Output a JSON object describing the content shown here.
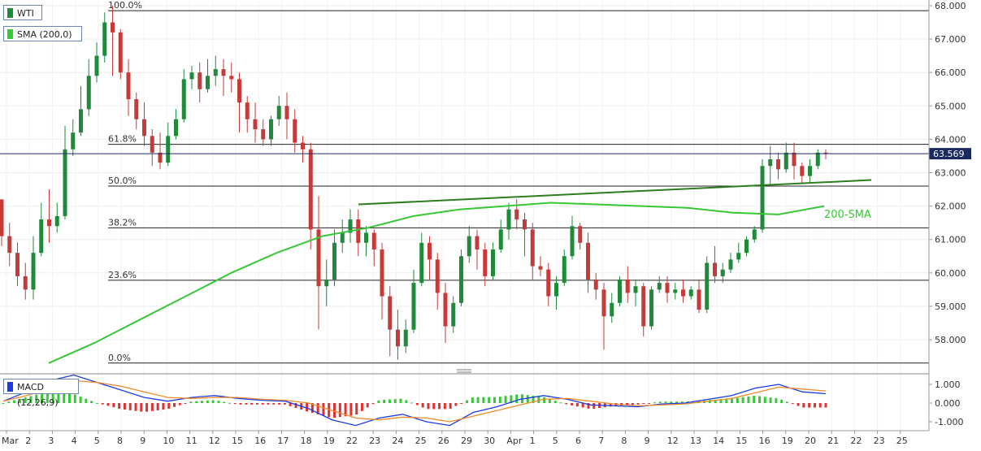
{
  "legend": {
    "main": "WTI",
    "sma": "SMA (200,0)",
    "macd": "MACD (12,26,9)"
  },
  "colors": {
    "up": "#1f8a3a",
    "down": "#c73a3a",
    "sma": "#37c837",
    "trend": "#2e7d1e",
    "macd": "#1a3ce8",
    "signal": "#f08a2a",
    "fib": "#222222"
  },
  "chart_data": [
    {
      "type": "candlestick",
      "title": "WTI",
      "x_labels": [
        "Mar",
        "2",
        "3",
        "4",
        "5",
        "8",
        "9",
        "10",
        "11",
        "12",
        "15",
        "16",
        "17",
        "18",
        "19",
        "22",
        "23",
        "24",
        "25",
        "26",
        "29",
        "30",
        "Apr",
        "1",
        "5",
        "6",
        "7",
        "8",
        "9",
        "12",
        "13",
        "14",
        "15",
        "16",
        "19",
        "20",
        "21",
        "22",
        "23",
        "25"
      ],
      "ylim": [
        57.5,
        68.0
      ],
      "y_ticks": [
        "68.000",
        "67.000",
        "66.000",
        "65.000",
        "64.000",
        "63.000",
        "62.000",
        "61.000",
        "60.000",
        "59.000",
        "58.000"
      ],
      "last_price": "63.569",
      "candles": [
        [
          62.2,
          61.9,
          61.1,
          60.8
        ],
        [
          61.1,
          61.5,
          60.6,
          60.2
        ],
        [
          60.6,
          60.9,
          59.9,
          59.6
        ],
        [
          59.9,
          60.3,
          59.5,
          59.2
        ],
        [
          59.5,
          61.1,
          60.6,
          59.2
        ],
        [
          60.6,
          62.1,
          61.6,
          60.5
        ],
        [
          61.6,
          62.5,
          61.4,
          60.9
        ],
        [
          61.4,
          62.1,
          61.7,
          61.2
        ],
        [
          61.7,
          64.4,
          63.7,
          61.6
        ],
        [
          63.7,
          64.6,
          64.2,
          63.5
        ],
        [
          64.2,
          65.6,
          64.9,
          64.1
        ],
        [
          64.9,
          66.4,
          65.9,
          64.7
        ],
        [
          65.9,
          66.9,
          66.5,
          65.7
        ],
        [
          66.5,
          67.8,
          67.5,
          66.3
        ],
        [
          67.5,
          68.0,
          67.2,
          65.9
        ],
        [
          67.2,
          67.3,
          66.0,
          65.8
        ],
        [
          66.0,
          66.4,
          65.2,
          64.7
        ],
        [
          65.2,
          65.4,
          64.6,
          64.3
        ],
        [
          64.6,
          65.1,
          64.1,
          63.8
        ],
        [
          64.1,
          64.3,
          63.6,
          63.2
        ],
        [
          63.6,
          64.2,
          63.3,
          63.1
        ],
        [
          63.3,
          64.5,
          64.1,
          63.2
        ],
        [
          64.1,
          64.9,
          64.6,
          64.0
        ],
        [
          64.6,
          66.1,
          65.8,
          64.5
        ],
        [
          65.8,
          66.2,
          66.0,
          65.5
        ],
        [
          66.0,
          66.3,
          65.5,
          65.1
        ],
        [
          65.5,
          66.4,
          65.9,
          65.4
        ],
        [
          65.9,
          66.5,
          66.1,
          65.6
        ],
        [
          66.1,
          66.4,
          65.9,
          65.3
        ],
        [
          65.9,
          66.3,
          65.8,
          65.4
        ],
        [
          65.8,
          66.0,
          65.1,
          64.2
        ],
        [
          65.1,
          65.3,
          64.6,
          64.2
        ],
        [
          64.6,
          65.1,
          64.3,
          63.9
        ],
        [
          64.3,
          64.6,
          64.0,
          63.8
        ],
        [
          64.0,
          64.7,
          64.6,
          63.8
        ],
        [
          64.6,
          65.3,
          65.0,
          64.4
        ],
        [
          65.0,
          65.4,
          64.6,
          64.0
        ],
        [
          64.6,
          64.9,
          63.9,
          63.6
        ],
        [
          63.9,
          64.1,
          63.7,
          63.3
        ],
        [
          63.7,
          63.9,
          61.3,
          60.7
        ],
        [
          61.3,
          62.3,
          59.6,
          58.3
        ],
        [
          59.6,
          60.4,
          59.8,
          59.0
        ],
        [
          59.8,
          61.3,
          60.9,
          59.6
        ],
        [
          60.9,
          61.6,
          61.2,
          60.6
        ],
        [
          61.2,
          61.9,
          61.6,
          60.9
        ],
        [
          61.6,
          61.9,
          60.9,
          60.5
        ],
        [
          60.9,
          61.4,
          61.2,
          60.5
        ],
        [
          61.2,
          61.3,
          60.7,
          60.2
        ],
        [
          60.7,
          60.9,
          59.3,
          58.6
        ],
        [
          59.3,
          59.6,
          58.3,
          57.5
        ],
        [
          58.3,
          58.9,
          57.8,
          57.4
        ],
        [
          57.8,
          58.6,
          58.3,
          57.6
        ],
        [
          58.3,
          60.1,
          59.7,
          58.2
        ],
        [
          59.7,
          61.2,
          60.9,
          59.6
        ],
        [
          60.9,
          61.1,
          60.4,
          59.8
        ],
        [
          60.4,
          60.6,
          59.4,
          58.9
        ],
        [
          59.4,
          59.7,
          58.4,
          57.9
        ],
        [
          58.4,
          59.3,
          59.1,
          58.2
        ],
        [
          59.1,
          60.7,
          60.5,
          59.0
        ],
        [
          60.5,
          61.4,
          61.1,
          60.3
        ],
        [
          61.1,
          61.3,
          60.7,
          60.1
        ],
        [
          60.7,
          60.9,
          59.9,
          59.6
        ],
        [
          59.9,
          60.9,
          60.7,
          59.8
        ],
        [
          60.7,
          61.6,
          61.3,
          60.6
        ],
        [
          61.3,
          62.1,
          61.9,
          61.0
        ],
        [
          61.9,
          62.2,
          61.6,
          61.3
        ],
        [
          61.6,
          61.8,
          61.3,
          60.5
        ],
        [
          61.3,
          61.5,
          60.2,
          59.8
        ],
        [
          60.2,
          60.5,
          60.1,
          59.9
        ],
        [
          60.1,
          60.3,
          59.3,
          59.0
        ],
        [
          59.3,
          59.9,
          59.7,
          58.9
        ],
        [
          59.7,
          60.7,
          60.5,
          59.6
        ],
        [
          60.5,
          61.7,
          61.4,
          60.4
        ],
        [
          61.4,
          61.5,
          60.9,
          60.7
        ],
        [
          60.9,
          61.2,
          59.8,
          59.4
        ],
        [
          59.8,
          60.0,
          59.5,
          59.2
        ],
        [
          59.5,
          59.7,
          58.7,
          57.7
        ],
        [
          58.7,
          59.4,
          59.1,
          58.5
        ],
        [
          59.1,
          59.9,
          59.8,
          59.0
        ],
        [
          59.8,
          60.2,
          59.4,
          59.1
        ],
        [
          59.4,
          59.8,
          59.6,
          59.0
        ],
        [
          59.6,
          59.7,
          58.4,
          58.1
        ],
        [
          58.4,
          59.6,
          59.5,
          58.3
        ],
        [
          59.5,
          59.9,
          59.7,
          59.4
        ],
        [
          59.7,
          59.9,
          59.4,
          59.1
        ],
        [
          59.4,
          59.7,
          59.5,
          59.2
        ],
        [
          59.5,
          59.8,
          59.3,
          59.1
        ],
        [
          59.3,
          59.6,
          59.5,
          59.2
        ],
        [
          59.5,
          59.8,
          58.9,
          58.8
        ],
        [
          58.9,
          60.5,
          60.3,
          58.8
        ],
        [
          60.3,
          60.8,
          59.9,
          59.7
        ],
        [
          59.9,
          60.3,
          60.1,
          59.7
        ],
        [
          60.1,
          60.6,
          60.4,
          60.0
        ],
        [
          60.4,
          60.9,
          60.6,
          60.3
        ],
        [
          60.6,
          61.1,
          61.0,
          60.5
        ],
        [
          61.0,
          61.4,
          61.3,
          60.9
        ],
        [
          61.3,
          63.4,
          63.2,
          61.2
        ],
        [
          63.2,
          63.8,
          63.4,
          62.6
        ],
        [
          63.4,
          63.6,
          63.1,
          62.8
        ],
        [
          63.1,
          63.9,
          63.6,
          63.0
        ],
        [
          63.6,
          63.9,
          63.2,
          62.8
        ],
        [
          63.2,
          63.3,
          62.9,
          62.7
        ],
        [
          62.9,
          63.4,
          63.2,
          62.7
        ],
        [
          63.2,
          63.7,
          63.6,
          63.1
        ],
        [
          63.6,
          63.7,
          63.57,
          63.4
        ]
      ],
      "sma_values": [
        57.3,
        57.9,
        58.6,
        59.3,
        60.0,
        60.6,
        61.1,
        61.35,
        61.7,
        61.9,
        62.0,
        62.1,
        62.05,
        62.0,
        61.95,
        61.8,
        61.75,
        62.0
      ],
      "fib_levels": [
        {
          "label": "100.0%",
          "value": 67.85
        },
        {
          "label": "61.8%",
          "value": 63.85
        },
        {
          "label": "50.0%",
          "value": 62.6
        },
        {
          "label": "38.2%",
          "value": 61.35
        },
        {
          "label": "23.6%",
          "value": 59.78
        },
        {
          "label": "0.0%",
          "value": 57.3
        }
      ],
      "trendline": {
        "from": 62.05,
        "to": 62.78
      },
      "annotations": [
        "200-SMA"
      ]
    },
    {
      "type": "macd",
      "title": "MACD (12,26,9)",
      "ylim": [
        -1.4,
        1.55
      ],
      "y_ticks": [
        "1.000",
        "0.000",
        "-1.000"
      ],
      "macd": [
        0.1,
        0.6,
        1.2,
        1.5,
        1.1,
        0.7,
        0.3,
        0.1,
        0.3,
        0.4,
        0.25,
        0.15,
        0.1,
        -0.3,
        -0.9,
        -1.2,
        -0.8,
        -0.6,
        -1.0,
        -1.2,
        -0.5,
        -0.2,
        0.2,
        0.4,
        0.2,
        -0.1,
        -0.15,
        -0.2,
        -0.05,
        0.0,
        0.2,
        0.4,
        0.8,
        1.0,
        0.6,
        0.5
      ],
      "signal": [
        0.1,
        0.4,
        0.8,
        1.2,
        1.1,
        0.9,
        0.6,
        0.3,
        0.25,
        0.3,
        0.3,
        0.2,
        0.15,
        0.0,
        -0.4,
        -0.8,
        -0.9,
        -0.75,
        -0.8,
        -1.0,
        -0.7,
        -0.4,
        -0.1,
        0.2,
        0.25,
        0.1,
        -0.05,
        -0.15,
        -0.1,
        -0.05,
        0.1,
        0.25,
        0.55,
        0.85,
        0.75,
        0.65
      ]
    }
  ]
}
